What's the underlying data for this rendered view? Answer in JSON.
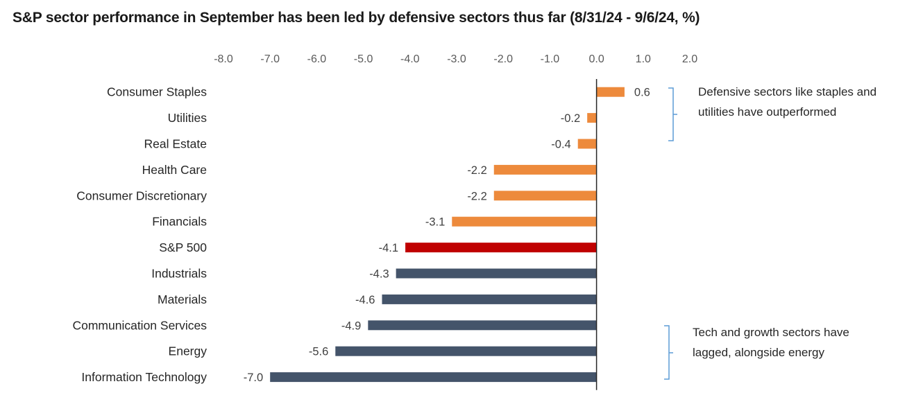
{
  "title": "S&P sector performance in September has been led by defensive sectors thus far (8/31/24 - 9/6/24, %)",
  "colors": {
    "positive_top": "#ED8A3C",
    "benchmark": "#C00000",
    "lagging": "#44546A",
    "bracket": "#5B9BD5"
  },
  "annotations": {
    "defensive": "Defensive sectors like staples and utilities have outperformed",
    "lagging": "Tech and growth sectors have lagged, alongside energy"
  },
  "chart_data": {
    "type": "bar",
    "orientation": "horizontal",
    "title": "S&P sector performance in September has been led by defensive sectors thus far (8/31/24 - 9/6/24, %)",
    "categories": [
      "Consumer Staples",
      "Utilities",
      "Real Estate",
      "Health Care",
      "Consumer Discretionary",
      "Financials",
      "S&P 500",
      "Industrials",
      "Materials",
      "Communication Services",
      "Energy",
      "Information Technology"
    ],
    "values": [
      0.6,
      -0.2,
      -0.4,
      -2.2,
      -2.2,
      -3.1,
      -4.1,
      -4.3,
      -4.6,
      -4.9,
      -5.6,
      -7.0
    ],
    "value_labels": [
      "0.6",
      "-0.2",
      "-0.4",
      "-2.2",
      "-2.2",
      "-3.1",
      "-4.1",
      "-4.3",
      "-4.6",
      "-4.9",
      "-5.6",
      "-7.0"
    ],
    "bar_groups": [
      "orange",
      "orange",
      "orange",
      "orange",
      "orange",
      "orange",
      "red",
      "navy",
      "navy",
      "navy",
      "navy",
      "navy"
    ],
    "xlim": [
      -8.0,
      2.0
    ],
    "xticks": [
      "-8.0",
      "-7.0",
      "-6.0",
      "-5.0",
      "-4.0",
      "-3.0",
      "-2.0",
      "-1.0",
      "0.0",
      "1.0",
      "2.0"
    ],
    "xaxis_position": "top",
    "grid": false,
    "legend": "none"
  }
}
